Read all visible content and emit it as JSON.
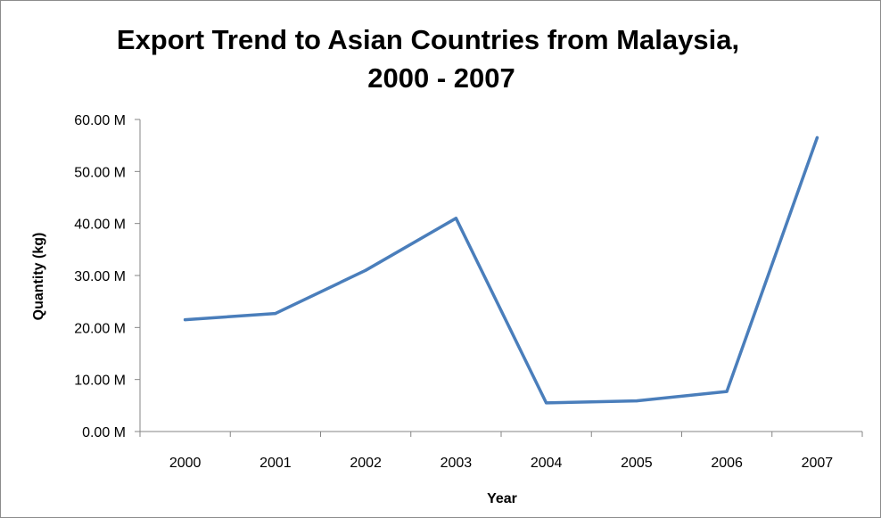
{
  "chart_data": {
    "type": "line",
    "title_lines": [
      "Export Trend to Asian Countries from Malaysia,",
      "2000 - 2007"
    ],
    "xlabel": "Year",
    "ylabel": "Quantity (kg)",
    "categories": [
      "2000",
      "2001",
      "2002",
      "2003",
      "2004",
      "2005",
      "2006",
      "2007"
    ],
    "series": [
      {
        "values": [
          21.5,
          22.7,
          31.0,
          41.0,
          5.5,
          5.9,
          7.7,
          56.5
        ]
      }
    ],
    "ylim": [
      0,
      60
    ],
    "y_ticks": [
      0,
      10,
      20,
      30,
      40,
      50,
      60
    ],
    "y_tick_labels": [
      "0.00 M",
      "10.00 M",
      "20.00 M",
      "30.00 M",
      "40.00 M",
      "50.00 M",
      "60.00 M"
    ],
    "y_unit": "M",
    "grid": false,
    "legend": "none",
    "colors": {
      "line": "#4a7ebb",
      "axis": "#868686"
    }
  }
}
